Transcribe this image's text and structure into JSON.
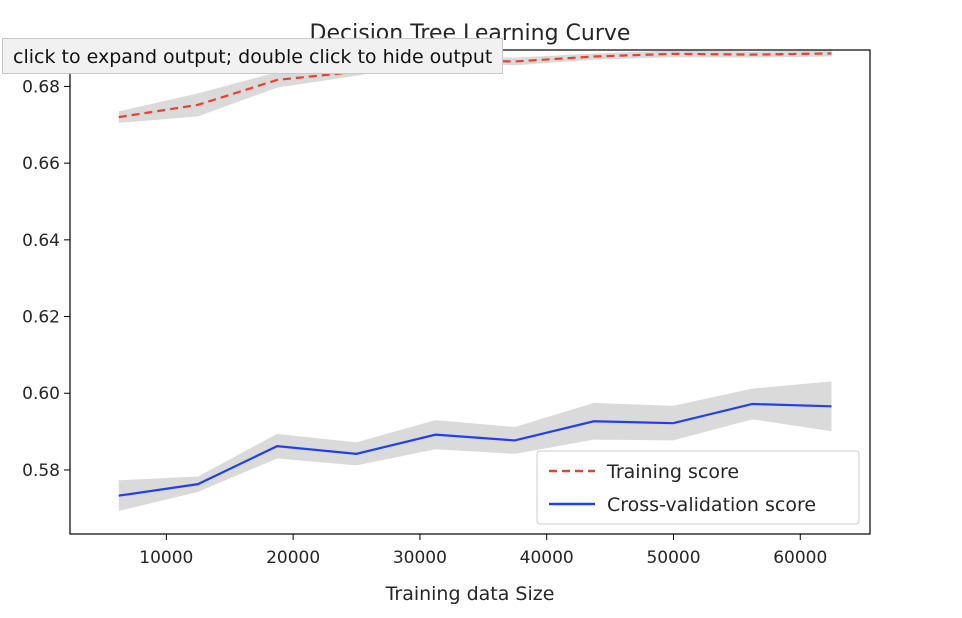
{
  "output_area": {
    "tooltip": "click to expand output; double click to hide output"
  },
  "chart_data": {
    "type": "line",
    "title": "Decision Tree Learning Curve",
    "xlabel": "Training data Size",
    "ylabel": "",
    "xlim": [
      2400,
      65500
    ],
    "ylim": [
      0.5633,
      0.6895
    ],
    "x": [
      6246,
      12493,
      18739,
      24986,
      31232,
      37479,
      43725,
      49972,
      56218,
      62465
    ],
    "xticks": [
      10000,
      20000,
      30000,
      40000,
      50000,
      60000
    ],
    "xtick_labels": [
      "10000",
      "20000",
      "30000",
      "40000",
      "50000",
      "60000"
    ],
    "yticks": [
      0.58,
      0.6,
      0.62,
      0.64,
      0.66,
      0.68
    ],
    "ytick_labels": [
      "0.58",
      "0.60",
      "0.62",
      "0.64",
      "0.66",
      "0.68"
    ],
    "grid": false,
    "legend_position": "lower-right",
    "series": [
      {
        "name": "Training score",
        "style": "dashed",
        "color": "#e8412f",
        "band_color": "#d8d8d8",
        "values": [
          0.672,
          0.6752,
          0.6817,
          0.6838,
          0.6869,
          0.6865,
          0.6878,
          0.6885,
          0.6883,
          0.6886
        ],
        "band": [
          0.0015,
          0.003,
          0.002,
          0.001,
          0.0008,
          0.001,
          0.0008,
          0.0009,
          0.0008,
          0.0008
        ]
      },
      {
        "name": "Cross-validation score",
        "style": "solid",
        "color": "#1f3ff2",
        "band_color": "#d8d8d8",
        "values": [
          0.5733,
          0.5763,
          0.5862,
          0.5842,
          0.5892,
          0.5877,
          0.5927,
          0.5922,
          0.5972,
          0.5966
        ],
        "band": [
          0.004,
          0.002,
          0.0032,
          0.003,
          0.0038,
          0.0035,
          0.0048,
          0.0045,
          0.004,
          0.0065
        ]
      }
    ]
  }
}
